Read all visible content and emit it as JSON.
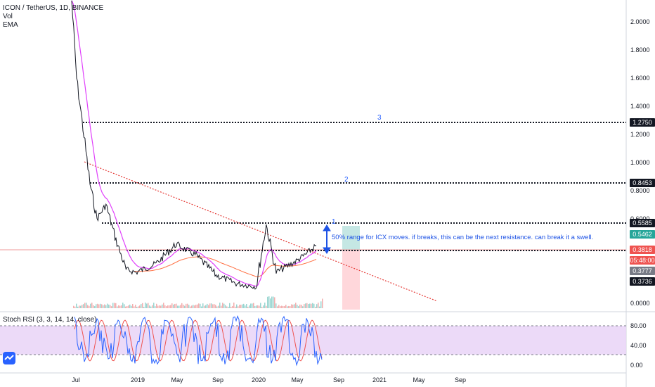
{
  "header": {
    "symbol_line": "ICON / TetherUS, 1D, BINANCE",
    "vol_label": "Vol",
    "ema_label": "EMA",
    "rsi_label": "Stoch RSI (3, 3, 14, 14, close)"
  },
  "annotation": {
    "text": "50% range for ICX moves. if breaks, this can be the next resistance. can break it a swell."
  },
  "labels": {
    "wave_1": "1",
    "wave_2": "2",
    "wave_3": "3"
  },
  "price_tags": {
    "r3": "1.2750",
    "r2": "0.8453",
    "r1": "0.5585",
    "t1": "0.5462",
    "last": "0.3818",
    "timer": "05:48:00",
    "t2": "0.3777",
    "support": "0.3736"
  },
  "colors": {
    "price_line": "#131722",
    "ema_fast": "#e040fb",
    "ema_slow": "#ff7043",
    "trendline": "#e53935",
    "rsi_band": "#e1bee7",
    "rsi_k": "#2962ff",
    "rsi_d": "#ef5350",
    "target_up": "#b2dfdb",
    "target_down": "#ffcdd2",
    "label_blue": "#2962ff"
  },
  "chart_data": [
    {
      "type": "line",
      "title": "ICON / TetherUS, 1D, BINANCE",
      "x_tick_labels": [
        "Jul",
        "2019",
        "May",
        "Sep",
        "2020",
        "May",
        "Sep",
        "2021",
        "May",
        "Sep"
      ],
      "y_tick_labels": [
        "2.0000",
        "1.8000",
        "1.6000",
        "1.4000",
        "1.2000",
        "1.0000",
        "0.8000",
        "0.6000",
        "0.0000"
      ],
      "ylim": [
        0,
        2.15
      ],
      "series": [
        {
          "name": "",
          "x": [
            "2018-07",
            "2018-07",
            "2018-08",
            "2018-08",
            "2018-09",
            "2018-10",
            "2018-11",
            "2018-12",
            "2019-01",
            "2019-03",
            "2019-05",
            "2019-07",
            "2019-09",
            "2019-11",
            "2020-01",
            "2020-02",
            "2020-03",
            "2020-05",
            "2020-06",
            "2020-07"
          ],
          "y": [
            2.15,
            1.6,
            1.25,
            0.85,
            0.6,
            0.7,
            0.45,
            0.24,
            0.22,
            0.28,
            0.42,
            0.34,
            0.2,
            0.14,
            0.12,
            0.56,
            0.22,
            0.3,
            0.35,
            0.41
          ]
        }
      ],
      "levels": [
        1.275,
        0.8453,
        0.5585,
        0.3736
      ],
      "grid": false
    },
    {
      "type": "line",
      "title": "Stoch RSI (3, 3, 14, 14, close)",
      "y_tick_labels": [
        "80.00",
        "40.00",
        "0.00"
      ],
      "ylim": [
        0,
        100
      ],
      "bands": [
        20,
        80
      ],
      "series": []
    }
  ]
}
